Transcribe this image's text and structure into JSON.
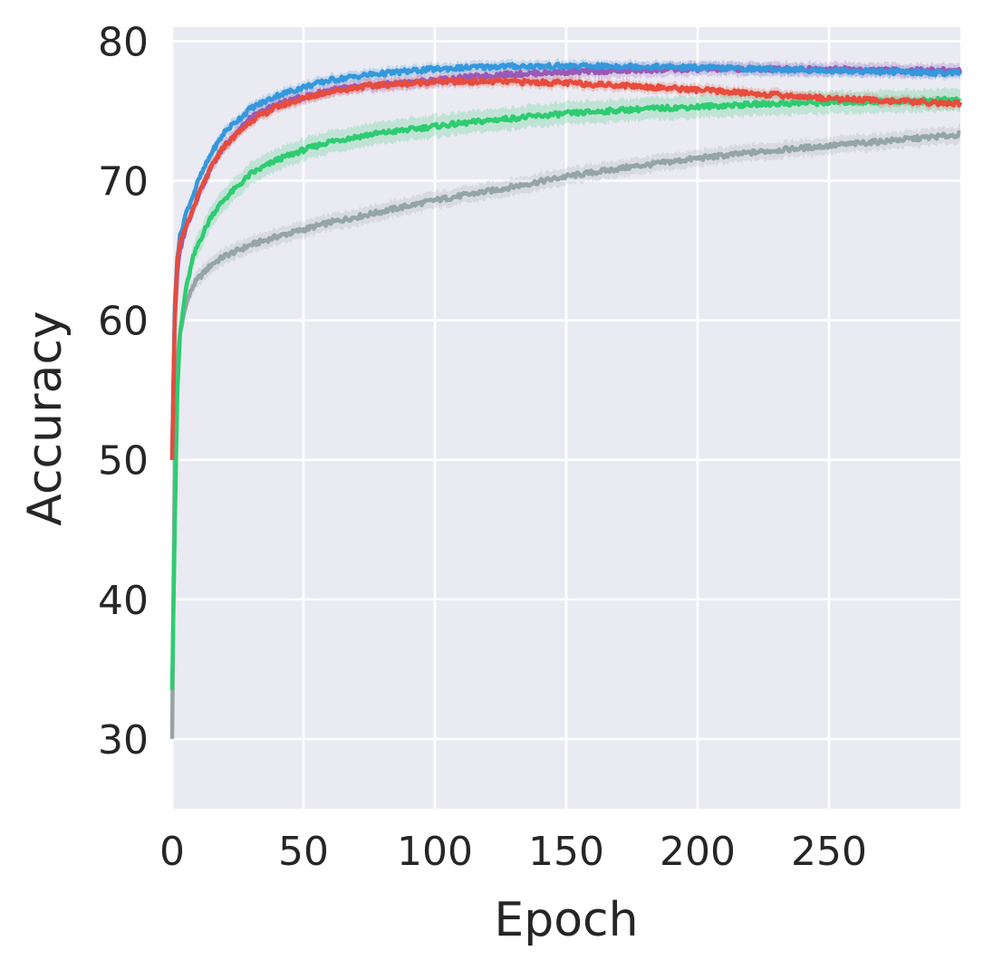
{
  "chart_data": {
    "type": "line",
    "xlabel": "Epoch",
    "ylabel": "Accuracy",
    "xlim": [
      0,
      300
    ],
    "ylim": [
      25,
      81
    ],
    "xticks": [
      0,
      50,
      100,
      150,
      200,
      250
    ],
    "xtick_labels": [
      "0",
      "50",
      "100",
      "150",
      "200",
      "250"
    ],
    "yticks": [
      30,
      40,
      50,
      60,
      70,
      80
    ],
    "ytick_labels": [
      "30",
      "40",
      "50",
      "60",
      "70",
      "80"
    ],
    "grid": true,
    "background_color": "#eaeaf2",
    "grid_color": "#ffffff",
    "series": [
      {
        "color": "#95a5a6",
        "x": [
          0,
          1,
          2,
          3,
          5,
          8,
          10,
          15,
          20,
          30,
          40,
          50,
          60,
          75,
          100,
          125,
          150,
          175,
          200,
          225,
          250,
          275,
          300
        ],
        "y": [
          30,
          50,
          57,
          59,
          61,
          62.5,
          63,
          64,
          64.6,
          65.4,
          66,
          66.5,
          67,
          67.6,
          68.6,
          69.4,
          70.3,
          71,
          71.6,
          72.1,
          72.5,
          72.9,
          73.3
        ],
        "band": 0.6
      },
      {
        "color": "#2ecc71",
        "x": [
          0,
          1,
          2,
          3,
          5,
          8,
          10,
          15,
          20,
          30,
          40,
          50,
          60,
          75,
          100,
          125,
          150,
          175,
          200,
          225,
          250,
          275,
          300
        ],
        "y": [
          33.5,
          45,
          55,
          59,
          62,
          64.5,
          65.5,
          67.5,
          68.7,
          70.5,
          71.5,
          72.2,
          72.8,
          73.3,
          73.9,
          74.4,
          74.8,
          75.1,
          75.3,
          75.5,
          75.6,
          75.7,
          75.8
        ],
        "band": 0.8
      },
      {
        "color": "#9b59b6",
        "x": [
          0,
          1,
          2,
          3,
          5,
          8,
          10,
          15,
          20,
          30,
          40,
          50,
          60,
          75,
          100,
          125,
          150,
          175,
          200,
          225,
          250,
          275,
          300
        ],
        "y": [
          50,
          60,
          63.5,
          65,
          66.5,
          68,
          69,
          71,
          72.6,
          74.5,
          75.5,
          76,
          76.5,
          76.8,
          77.2,
          77.6,
          77.8,
          77.9,
          78,
          78,
          78,
          77.9,
          77.9
        ],
        "band": 0.5
      },
      {
        "color": "#3498db",
        "x": [
          0,
          1,
          2,
          3,
          5,
          8,
          10,
          15,
          20,
          30,
          40,
          50,
          60,
          75,
          100,
          125,
          150,
          175,
          200,
          225,
          250,
          275,
          300
        ],
        "y": [
          50,
          61,
          64.5,
          66,
          67.5,
          69,
          70,
          72,
          73.5,
          75.2,
          76.1,
          76.7,
          77.2,
          77.6,
          78,
          78.2,
          78.2,
          78.2,
          78.1,
          78,
          77.9,
          77.8,
          77.7
        ],
        "band": 0.4
      },
      {
        "color": "#e74c3c",
        "x": [
          0,
          1,
          2,
          3,
          5,
          8,
          10,
          15,
          20,
          30,
          40,
          50,
          60,
          75,
          100,
          125,
          150,
          175,
          200,
          225,
          250,
          275,
          300
        ],
        "y": [
          50,
          60,
          64.5,
          65.5,
          66.5,
          68,
          69,
          71,
          72.5,
          74.3,
          75.3,
          75.9,
          76.4,
          76.8,
          77.1,
          77.1,
          77,
          76.8,
          76.5,
          76.2,
          75.9,
          75.7,
          75.5
        ],
        "band": 0.4
      }
    ]
  }
}
